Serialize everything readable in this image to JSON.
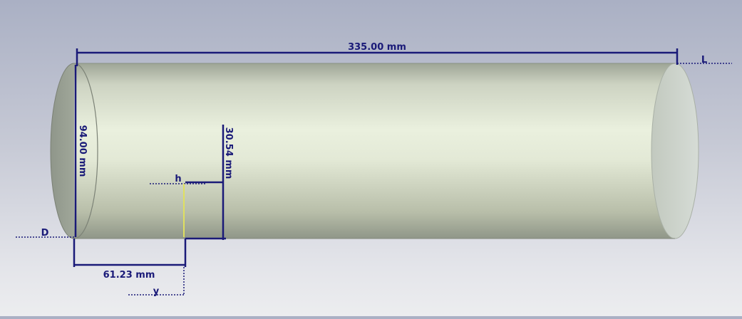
{
  "dimensions": {
    "length": "335.00 mm",
    "diameter": "94.00 mm",
    "height": "30.54 mm",
    "offset": "61.23 mm"
  },
  "markers": {
    "length": "L",
    "diameter": "D",
    "height": "h",
    "offset": "y"
  },
  "colors": {
    "dimension_line": "#1a1a78",
    "probe_line": "#e0e060",
    "cylinder_light": "#eef2e2",
    "cylinder_dark": "#9aa392"
  }
}
